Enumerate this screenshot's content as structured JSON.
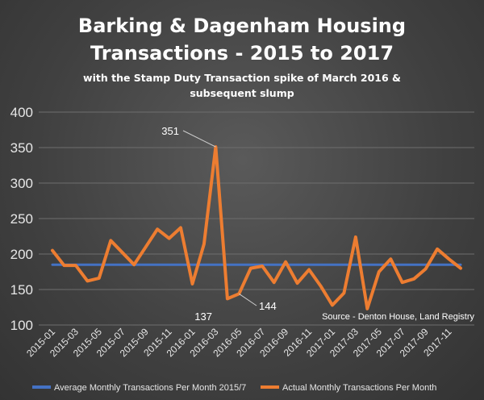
{
  "chart_data": {
    "type": "line",
    "title_lines": [
      "Barking & Dagenham Housing",
      "Transactions - 2015 to 2017"
    ],
    "subtitle_lines": [
      "with the Stamp Duty Transaction spike of March 2016 &",
      "subsequent slump"
    ],
    "source": "Source - Denton House, Land Registry",
    "ylim": [
      100,
      400
    ],
    "yticks": [
      100,
      150,
      200,
      250,
      300,
      350,
      400
    ],
    "grid": true,
    "legend_position": "bottom",
    "x": [
      "2015-01",
      "2015-02",
      "2015-03",
      "2015-04",
      "2015-05",
      "2015-06",
      "2015-07",
      "2015-08",
      "2015-09",
      "2015-10",
      "2015-11",
      "2015-12",
      "2016-01",
      "2016-02",
      "2016-03",
      "2016-04",
      "2016-05",
      "2016-06",
      "2016-07",
      "2016-08",
      "2016-09",
      "2016-10",
      "2016-11",
      "2016-12",
      "2017-01",
      "2017-02",
      "2017-03",
      "2017-04",
      "2017-05",
      "2017-06",
      "2017-07",
      "2017-08",
      "2017-09",
      "2017-10",
      "2017-11",
      "2017-12"
    ],
    "xtick_labels": [
      "2015-01",
      "2015-03",
      "2015-05",
      "2015-07",
      "2015-09",
      "2015-11",
      "2016-01",
      "2016-03",
      "2016-05",
      "2016-07",
      "2016-09",
      "2016-11",
      "2017-01",
      "2017-03",
      "2017-05",
      "2017-07",
      "2017-09",
      "2017-11"
    ],
    "series": [
      {
        "name": "Average Monthly Transactions Per Month 2015/7",
        "color": "#4472c4",
        "values": [
          185,
          185,
          185,
          185,
          185,
          185,
          185,
          185,
          185,
          185,
          185,
          185,
          185,
          185,
          185,
          185,
          185,
          185,
          185,
          185,
          185,
          185,
          185,
          185,
          185,
          185,
          185,
          185,
          185,
          185,
          185,
          185,
          185,
          185,
          185,
          185
        ]
      },
      {
        "name": "Actual Monthly Transactions Per Month",
        "color": "#ed7d31",
        "values": [
          205,
          184,
          184,
          162,
          166,
          219,
          202,
          185,
          210,
          235,
          222,
          237,
          158,
          214,
          351,
          137,
          144,
          180,
          183,
          160,
          189,
          159,
          178,
          155,
          128,
          145,
          224,
          123,
          175,
          193,
          160,
          165,
          179,
          207,
          193,
          180
        ]
      }
    ],
    "annotations": [
      {
        "x": "2016-03",
        "text": "351"
      },
      {
        "x": "2016-04",
        "text": "137"
      },
      {
        "x": "2016-05",
        "text": "144"
      }
    ]
  }
}
